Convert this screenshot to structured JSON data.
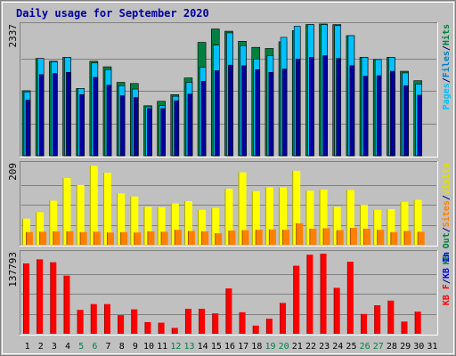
{
  "chart_data": {
    "type": "bar",
    "title": "Daily usage for September 2020",
    "categories": [
      "1",
      "2",
      "3",
      "4",
      "5",
      "6",
      "7",
      "8",
      "9",
      "10",
      "11",
      "12",
      "13",
      "14",
      "15",
      "16",
      "17",
      "18",
      "19",
      "20",
      "21",
      "22",
      "23",
      "24",
      "25",
      "26",
      "27",
      "28",
      "29",
      "30",
      "31"
    ],
    "weekend_days": [
      "5",
      "6",
      "12",
      "13",
      "19",
      "20",
      "26",
      "27"
    ],
    "panels": [
      {
        "id": "top",
        "ymax_label": "2337",
        "ymax": 2337,
        "right_labels": [
          {
            "text": "Hits",
            "color": "#008040"
          },
          {
            "text": "/",
            "color": "#000080"
          },
          {
            "text": "Files",
            "color": "#0080c0"
          },
          {
            "text": "/",
            "color": "#000080"
          },
          {
            "text": "Pages",
            "color": "#00c0ff"
          }
        ],
        "series": [
          {
            "name": "Hits",
            "color": "#008040",
            "values": [
              1170,
              1750,
              1700,
              1770,
              1210,
              1700,
              1600,
              1320,
              1300,
              900,
              980,
              1100,
              1400,
              2040,
              2280,
              2240,
              2060,
              1950,
              1930,
              2050,
              2250,
              2360,
              2370,
              2360,
              2160,
              1770,
              1730,
              1770,
              1520,
              1350,
              0
            ]
          },
          {
            "name": "Files",
            "color": "#00c0ff",
            "values": [
              1150,
              1750,
              1690,
              1770,
              1210,
              1670,
              1550,
              1260,
              1200,
              880,
              900,
              1070,
              1320,
              1590,
              1990,
              2210,
              1980,
              1740,
              1800,
              2130,
              2330,
              2360,
              2360,
              2340,
              2160,
              1770,
              1730,
              1770,
              1490,
              1290,
              0
            ]
          },
          {
            "name": "Pages",
            "color": "#0000a0",
            "values": [
              1000,
              1460,
              1480,
              1500,
              1100,
              1410,
              1270,
              1080,
              1050,
              850,
              850,
              990,
              1110,
              1340,
              1530,
              1630,
              1620,
              1550,
              1500,
              1560,
              1740,
              1770,
              1800,
              1750,
              1620,
              1430,
              1440,
              1520,
              1260,
              1090,
              0
            ]
          }
        ]
      },
      {
        "id": "middle",
        "ymax_label": "209",
        "ymax": 209,
        "right_labels": [
          {
            "text": "Visits",
            "color": "#e0e000"
          },
          {
            "text": "/",
            "color": "#000080"
          },
          {
            "text": "Sites",
            "color": "#ff8000"
          },
          {
            "text": "/",
            "color": "#000080"
          },
          {
            "text": "KB Out",
            "color": "#008040"
          }
        ],
        "series": [
          {
            "name": "Visits",
            "color": "#ffff00",
            "values": [
              68,
              85,
              115,
              174,
              156,
              206,
              188,
              134,
              126,
              99,
              98,
              108,
              114,
              91,
              96,
              146,
              189,
              140,
              150,
              150,
              193,
              141,
              144,
              99,
              143,
              104,
              91,
              93,
              112,
              117,
              0
            ]
          },
          {
            "name": "Sites",
            "color": "#ff8000",
            "values": [
              33,
              34,
              35,
              35,
              33,
              34,
              32,
              33,
              32,
              35,
              34,
              39,
              36,
              35,
              30,
              37,
              38,
              39,
              40,
              39,
              56,
              42,
              43,
              38,
              44,
              42,
              39,
              33,
              36,
              34,
              0
            ]
          }
        ]
      },
      {
        "id": "bottom",
        "ymax_label": "137793",
        "ymax": 137793,
        "right_labels": [
          {
            "text": "KB In",
            "color": "#0000ff"
          },
          {
            "text": "/",
            "color": "#000080"
          },
          {
            "text": "KB F",
            "color": "#ff0000"
          }
        ],
        "series": [
          {
            "name": "KB F",
            "color": "#ff0000",
            "values": [
              121000,
              128000,
              123000,
              100000,
              41000,
              51000,
              51000,
              32000,
              42000,
              20000,
              19000,
              10000,
              43000,
              43000,
              35000,
              78000,
              37000,
              14000,
              26000,
              53000,
              117000,
              136000,
              137793,
              79000,
              124000,
              34000,
              49000,
              57000,
              21000,
              38000,
              0
            ]
          }
        ]
      }
    ]
  }
}
